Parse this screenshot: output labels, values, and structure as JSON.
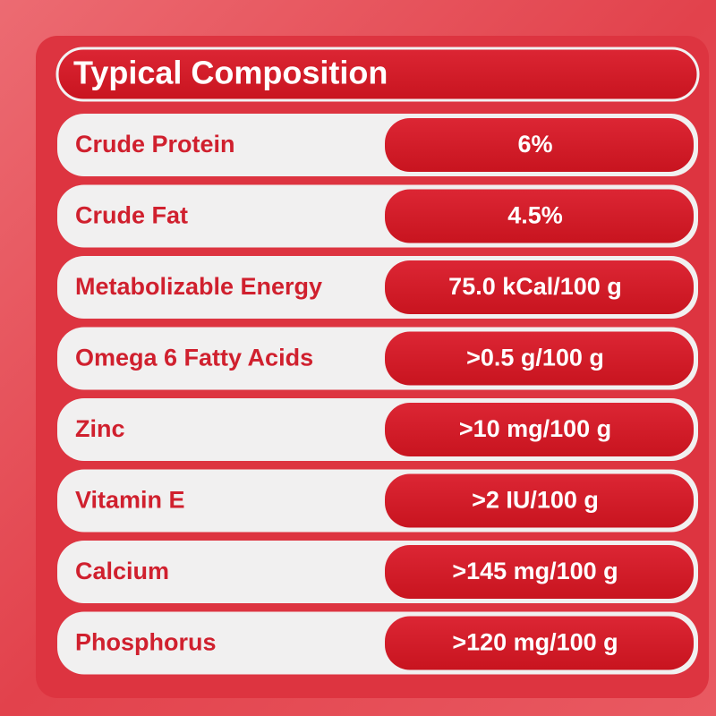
{
  "table": {
    "title": "Typical Composition",
    "rows": [
      {
        "label": "Crude Protein",
        "value": "6%"
      },
      {
        "label": "Crude Fat",
        "value": "4.5%"
      },
      {
        "label": "Metabolizable Energy",
        "value": "75.0 kCal/100 g"
      },
      {
        "label": "Omega 6 Fatty Acids",
        "value": ">0.5 g/100 g"
      },
      {
        "label": "Zinc",
        "value": ">10 mg/100 g"
      },
      {
        "label": "Vitamin E",
        "value": ">2 IU/100 g"
      },
      {
        "label": "Calcium",
        "value": ">145 mg/100 g"
      },
      {
        "label": "Phosphorus",
        "value": ">120 mg/100 g"
      }
    ]
  }
}
